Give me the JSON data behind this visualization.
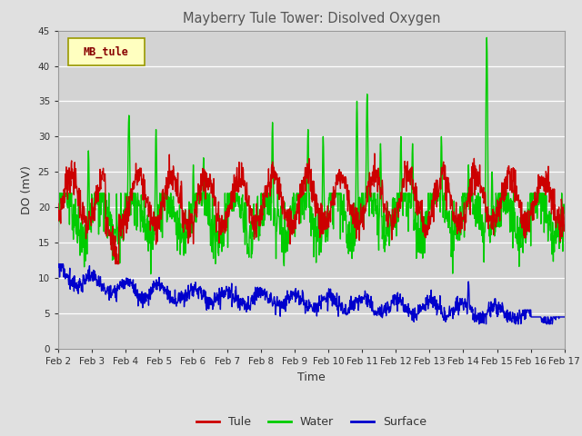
{
  "title": "Mayberry Tule Tower: Disolved Oxygen",
  "xlabel": "Time",
  "ylabel": "DO (mV)",
  "ylim": [
    0,
    45
  ],
  "yticks": [
    0,
    5,
    10,
    15,
    20,
    25,
    30,
    35,
    40,
    45
  ],
  "x_tick_labels": [
    "Feb 2",
    "Feb 3",
    "Feb 4",
    "Feb 5",
    "Feb 6",
    "Feb 7",
    "Feb 8",
    "Feb 9",
    "Feb 10",
    "Feb 11",
    "Feb 12",
    "Feb 13",
    "Feb 14",
    "Feb 15",
    "Feb 16",
    "Feb 17"
  ],
  "legend_label": "MB_tule",
  "background_color": "#e0e0e0",
  "plot_bg_color": "#d3d3d3",
  "tule_color": "#cc0000",
  "water_color": "#00cc00",
  "surface_color": "#0000cc",
  "line_width": 1.0
}
